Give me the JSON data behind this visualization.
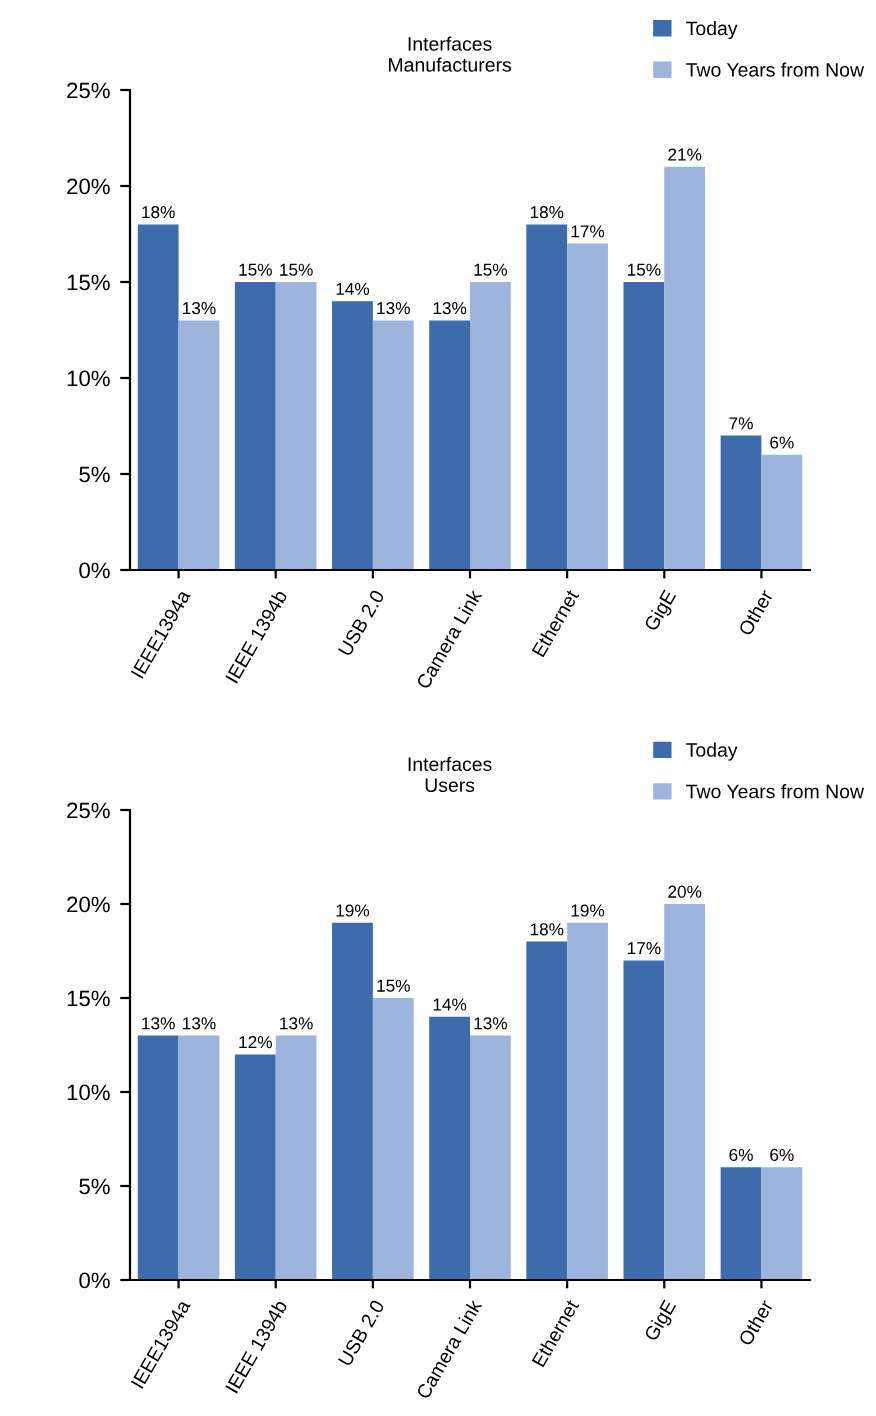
{
  "chart_data": [
    {
      "type": "bar",
      "title": "Interfaces\nManufacturers",
      "categories": [
        "IEEE1394a",
        "IEEE 1394b",
        "USB 2.0",
        "Camera Link",
        "Ethernet",
        "GigE",
        "Other"
      ],
      "series": [
        {
          "name": "Today",
          "color": "#3d6bab",
          "values": [
            18,
            15,
            14,
            13,
            18,
            15,
            7
          ],
          "value_labels": [
            "18%",
            "15%",
            "14%",
            "13%",
            "18%",
            "15%",
            "7%"
          ]
        },
        {
          "name": "Two Years from Now",
          "color": "#9db5dc",
          "values": [
            13,
            15,
            13,
            15,
            17,
            21,
            6
          ],
          "value_labels": [
            "13%",
            "15%",
            "13%",
            "15%",
            "17%",
            "21%",
            "6%"
          ]
        }
      ],
      "ylim": [
        0,
        25
      ],
      "yticks": [
        {
          "value": 0,
          "label": "0%"
        },
        {
          "value": 5,
          "label": "5%"
        },
        {
          "value": 10,
          "label": "10%"
        },
        {
          "value": 15,
          "label": "15%"
        },
        {
          "value": 20,
          "label": "20%"
        },
        {
          "value": 25,
          "label": "25%"
        }
      ],
      "legend": "top right"
    },
    {
      "type": "bar",
      "title": "Interfaces\nUsers",
      "categories": [
        "IEEE1394a",
        "IEEE 1394b",
        "USB 2.0",
        "Camera Link",
        "Ethernet",
        "GigE",
        "Other"
      ],
      "series": [
        {
          "name": "Today",
          "color": "#3d6bab",
          "values": [
            13,
            12,
            19,
            14,
            18,
            17,
            6
          ],
          "value_labels": [
            "13%",
            "12%",
            "19%",
            "14%",
            "18%",
            "17%",
            "6%"
          ]
        },
        {
          "name": "Two Years from Now",
          "color": "#9db5dc",
          "values": [
            13,
            13,
            15,
            13,
            19,
            20,
            6
          ],
          "value_labels": [
            "13%",
            "13%",
            "15%",
            "13%",
            "19%",
            "20%",
            "6%"
          ]
        }
      ],
      "ylim": [
        0,
        25
      ],
      "yticks": [
        {
          "value": 0,
          "label": "0%"
        },
        {
          "value": 5,
          "label": "5%"
        },
        {
          "value": 10,
          "label": "10%"
        },
        {
          "value": 15,
          "label": "15%"
        },
        {
          "value": 20,
          "label": "20%"
        },
        {
          "value": 25,
          "label": "25%"
        }
      ],
      "legend": "top right"
    }
  ]
}
